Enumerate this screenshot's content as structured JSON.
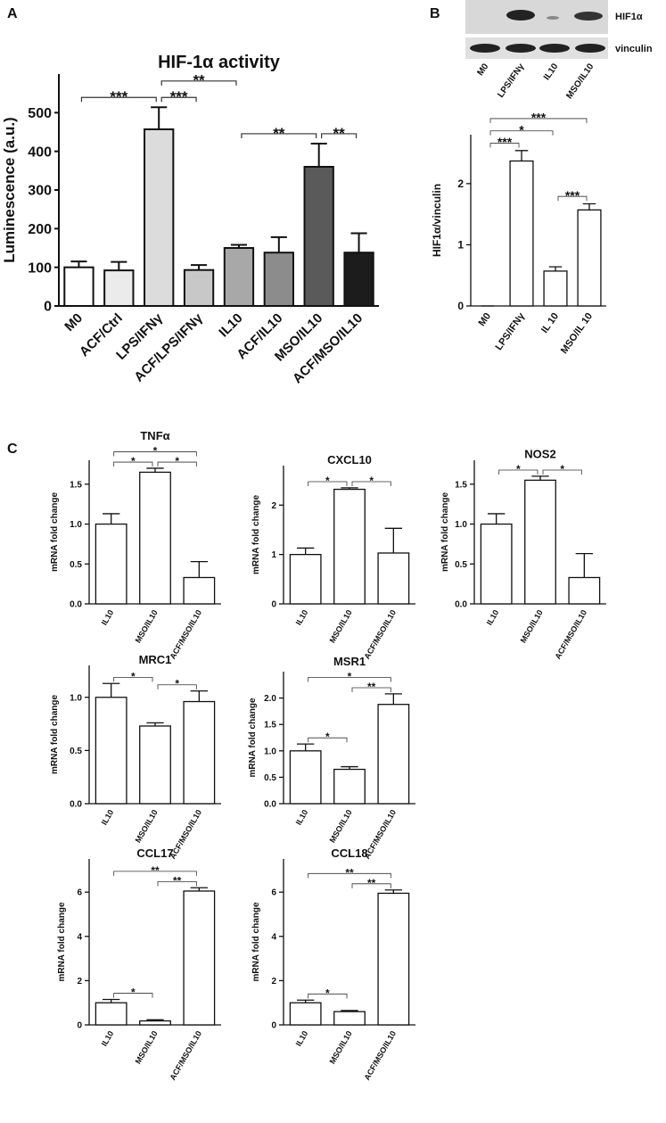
{
  "figure": {
    "panel_labels": [
      "A",
      "B",
      "C"
    ]
  },
  "blot": {
    "bands": [
      "HIF1α",
      "vinculin"
    ],
    "lanes": [
      "M0",
      "LPS/IFNγ",
      "IL10",
      "MSO/IL10"
    ]
  },
  "chart_data": [
    {
      "type": "bar",
      "title": "HIF-1α activity",
      "y_label": "Luminescence (a.u.)",
      "categories": [
        "M0",
        "ACF/Ctrl",
        "LPS/IFNγ",
        "ACF/LPS/IFNγ",
        "IL10",
        "ACF/IL10",
        "MSO/IL10",
        "ACF/MSO/IL10"
      ],
      "values": [
        100,
        92,
        457,
        93,
        150,
        138,
        360,
        138
      ],
      "errors": [
        15,
        22,
        57,
        13,
        8,
        40,
        60,
        50
      ],
      "colors": [
        "#ffffff",
        "#ebebeb",
        "#dcdcdc",
        "#c8c8c8",
        "#a8a8a8",
        "#8c8c8c",
        "#5a5a5a",
        "#1c1c1c"
      ],
      "ylim": [
        0,
        600
      ],
      "yticks": [
        0,
        100,
        200,
        300,
        400,
        500
      ],
      "significance": [
        {
          "between": [
            "M0",
            "LPS/IFNγ"
          ],
          "label": "***"
        },
        {
          "between": [
            "LPS/IFNγ",
            "ACF/LPS/IFNγ"
          ],
          "label": "***"
        },
        {
          "between": [
            "LPS/IFNγ",
            "IL10"
          ],
          "label": "**"
        },
        {
          "between": [
            "IL10",
            "MSO/IL10"
          ],
          "label": "**"
        },
        {
          "between": [
            "MSO/IL10",
            "ACF/MSO/IL10"
          ],
          "label": "**"
        }
      ]
    },
    {
      "type": "bar",
      "y_label": "HIF1α/vinculin",
      "categories": [
        "M0",
        "LPS/IFNγ",
        "IL 10",
        "MSO/IL 10"
      ],
      "values": [
        0,
        2.37,
        0.57,
        1.57
      ],
      "errors": [
        0,
        0.17,
        0.07,
        0.1
      ],
      "color": "#ffffff",
      "ylim": [
        0,
        2.8
      ],
      "yticks": [
        0,
        1,
        2
      ],
      "significance": [
        {
          "between": [
            "M0",
            "LPS/IFNγ"
          ],
          "label": "***"
        },
        {
          "between": [
            "M0",
            "IL 10"
          ],
          "label": "*"
        },
        {
          "between": [
            "IL 10",
            "MSO/IL 10"
          ],
          "label": "***"
        },
        {
          "between": [
            "M0",
            "MSO/IL 10"
          ],
          "label": "***"
        }
      ]
    },
    {
      "type": "bar",
      "title": "TNFα",
      "y_label": "mRNA fold change",
      "categories": [
        "IL10",
        "MSO/IL10",
        "ACF/MSO/IL10"
      ],
      "values": [
        1.0,
        1.65,
        0.33
      ],
      "errors": [
        0.13,
        0.05,
        0.2
      ],
      "color": "#ffffff",
      "ylim": [
        0,
        1.8
      ],
      "yticks": [
        {
          "value": 0,
          "label": "0.0"
        },
        0.5,
        {
          "value": 1,
          "label": "1.0"
        },
        1.5
      ],
      "significance": [
        {
          "between": [
            "IL10",
            "MSO/IL10"
          ],
          "label": "*"
        },
        {
          "between": [
            "MSO/IL10",
            "ACF/MSO/IL10"
          ],
          "label": "*"
        },
        {
          "between": [
            "IL10",
            "ACF/MSO/IL10"
          ],
          "label": "*"
        }
      ]
    },
    {
      "type": "bar",
      "title": "CXCL10",
      "y_label": "mRNA fold change",
      "categories": [
        "IL10",
        "MSO/IL10",
        "ACF/MSO/IL10"
      ],
      "values": [
        1.0,
        2.32,
        1.03
      ],
      "errors": [
        0.13,
        0.03,
        0.5
      ],
      "color": "#ffffff",
      "ylim": [
        0,
        2.8
      ],
      "yticks": [
        0,
        1,
        2
      ],
      "significance": [
        {
          "between": [
            "IL10",
            "MSO/IL10"
          ],
          "label": "*"
        },
        {
          "between": [
            "MSO/IL10",
            "ACF/MSO/IL10"
          ],
          "label": "*"
        }
      ]
    },
    {
      "type": "bar",
      "title": "NOS2",
      "y_label": "mRNA fold change",
      "categories": [
        "IL10",
        "MSO/IL10",
        "ACF/MSO/IL10"
      ],
      "values": [
        1.0,
        1.55,
        0.33
      ],
      "errors": [
        0.13,
        0.05,
        0.3
      ],
      "color": "#ffffff",
      "ylim": [
        0,
        1.8
      ],
      "yticks": [
        {
          "value": 0,
          "label": "0.0"
        },
        0.5,
        {
          "value": 1,
          "label": "1.0"
        },
        1.5
      ],
      "significance": [
        {
          "between": [
            "IL10",
            "MSO/IL10"
          ],
          "label": "*"
        },
        {
          "between": [
            "MSO/IL10",
            "ACF/MSO/IL10"
          ],
          "label": "*"
        }
      ]
    },
    {
      "type": "bar",
      "title": "MRC1",
      "y_label": "mRNA fold change",
      "categories": [
        "IL10",
        "MSO/IL10",
        "ACF/MSO/IL10"
      ],
      "values": [
        1.0,
        0.73,
        0.96
      ],
      "errors": [
        0.13,
        0.03,
        0.1
      ],
      "color": "#ffffff",
      "ylim": [
        0,
        1.3
      ],
      "yticks": [
        {
          "value": 0,
          "label": "0.0"
        },
        0.5,
        {
          "value": 1,
          "label": "1.0"
        }
      ],
      "significance": [
        {
          "between": [
            "IL10",
            "MSO/IL10"
          ],
          "label": "*"
        },
        {
          "between": [
            "MSO/IL10",
            "ACF/MSO/IL10"
          ],
          "label": "*"
        }
      ]
    },
    {
      "type": "bar",
      "title": "MSR1",
      "y_label": "mRNA fold change",
      "categories": [
        "IL10",
        "MSO/IL10",
        "ACF/MSO/IL10"
      ],
      "values": [
        1.0,
        0.65,
        1.88
      ],
      "errors": [
        0.13,
        0.05,
        0.2
      ],
      "color": "#ffffff",
      "ylim": [
        0,
        2.5
      ],
      "yticks": [
        {
          "value": 0,
          "label": "0.0"
        },
        0.5,
        {
          "value": 1,
          "label": "1.0"
        },
        1.5,
        {
          "value": 2,
          "label": "2.0"
        }
      ],
      "significance": [
        {
          "between": [
            "IL10",
            "MSO/IL10"
          ],
          "label": "*"
        },
        {
          "between": [
            "MSO/IL10",
            "ACF/MSO/IL10"
          ],
          "label": "**"
        },
        {
          "between": [
            "IL10",
            "ACF/MSO/IL10"
          ],
          "label": "*"
        }
      ]
    },
    {
      "type": "bar",
      "title": "CCL17",
      "y_label": "mRNA fold change",
      "categories": [
        "IL10",
        "MSO/IL10",
        "ACF/MSO/IL10"
      ],
      "values": [
        1.0,
        0.18,
        6.05
      ],
      "errors": [
        0.15,
        0.05,
        0.15
      ],
      "color": "#ffffff",
      "ylim": [
        0,
        7.5
      ],
      "yticks": [
        0,
        2,
        4,
        6
      ],
      "significance": [
        {
          "between": [
            "IL10",
            "MSO/IL10"
          ],
          "label": "*"
        },
        {
          "between": [
            "MSO/IL10",
            "ACF/MSO/IL10"
          ],
          "label": "**"
        },
        {
          "between": [
            "IL10",
            "ACF/MSO/IL10"
          ],
          "label": "**"
        }
      ]
    },
    {
      "type": "bar",
      "title": "CCL18",
      "y_label": "mRNA fold change",
      "categories": [
        "IL10",
        "MSO/IL10",
        "ACF/MSO/IL10"
      ],
      "values": [
        1.0,
        0.6,
        5.95
      ],
      "errors": [
        0.12,
        0.05,
        0.15
      ],
      "color": "#ffffff",
      "ylim": [
        0,
        7.5
      ],
      "yticks": [
        0,
        2,
        4,
        6
      ],
      "significance": [
        {
          "between": [
            "IL10",
            "MSO/IL10"
          ],
          "label": "*"
        },
        {
          "between": [
            "MSO/IL10",
            "ACF/MSO/IL10"
          ],
          "label": "**"
        },
        {
          "between": [
            "IL10",
            "ACF/MSO/IL10"
          ],
          "label": "**"
        }
      ]
    }
  ]
}
